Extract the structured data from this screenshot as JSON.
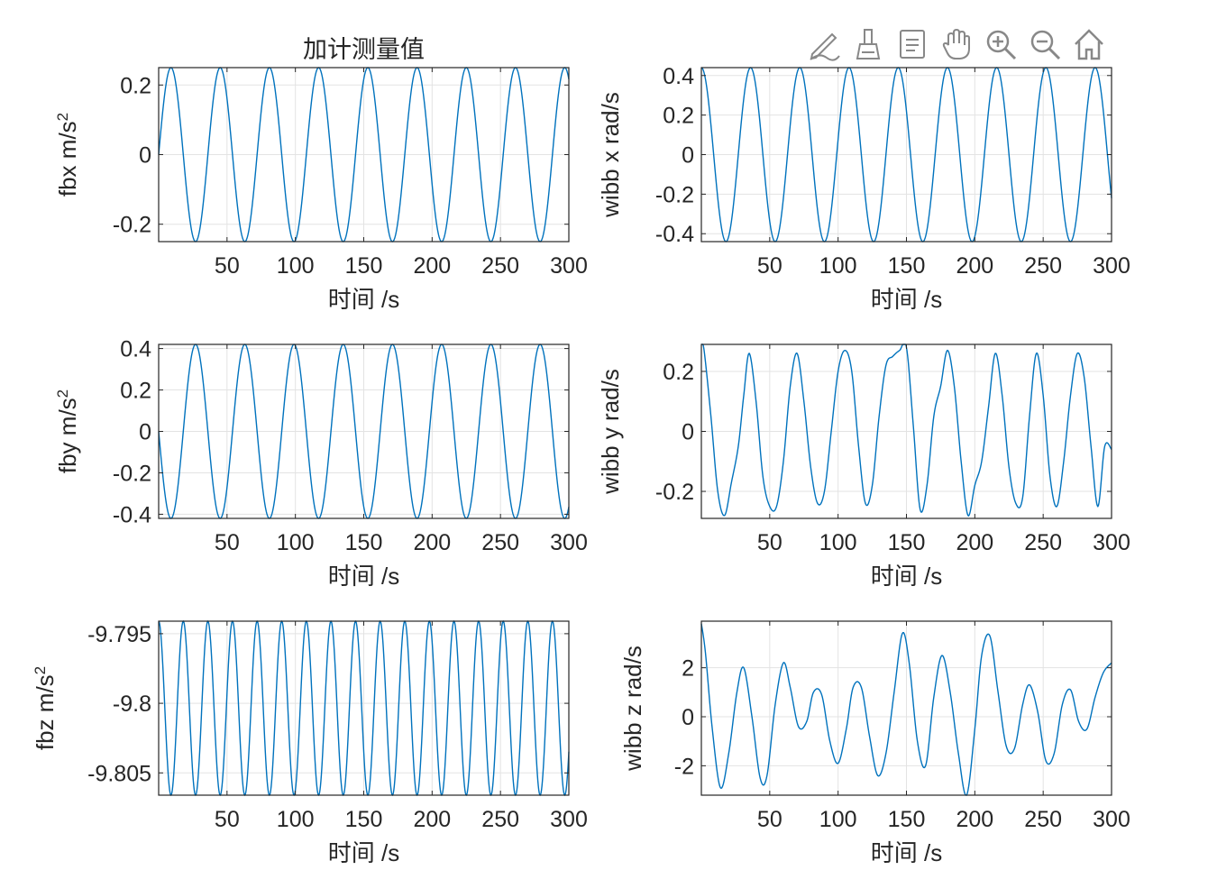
{
  "toolbar": {
    "items": [
      {
        "name": "edit-plot-icon"
      },
      {
        "name": "brush-icon"
      },
      {
        "name": "data-tips-icon"
      },
      {
        "name": "pan-hand-icon"
      },
      {
        "name": "zoom-in-icon"
      },
      {
        "name": "zoom-out-icon"
      },
      {
        "name": "home-icon"
      }
    ]
  },
  "colors": {
    "line": "#0072BD",
    "grid": "#e3e3e3",
    "axis": "#262626",
    "text": "#262626"
  },
  "chart_data": [
    {
      "type": "line",
      "title": "加计测量值",
      "xlabel": "时间 /s",
      "ylabel": "fbx m/s",
      "ylabel_sup": "2",
      "xlim": [
        0,
        300
      ],
      "ylim": [
        -0.25,
        0.25
      ],
      "xticks": [
        50,
        100,
        150,
        200,
        250,
        300
      ],
      "yticks": [
        -0.2,
        0,
        0.2
      ],
      "ytick_labels": [
        "-0.2",
        "0",
        "0.2"
      ],
      "grid": true,
      "series": [
        {
          "x": [
            0,
            300
          ],
          "y": [
            -0.25,
            0.25
          ],
          "form": "sine",
          "amplitude": 0.25,
          "period": 36,
          "phase_deg": 0,
          "offset": 0
        }
      ]
    },
    {
      "type": "line",
      "title": "",
      "xlabel": "时间 /s",
      "ylabel": "wibb x rad/s",
      "xlim": [
        0,
        300
      ],
      "ylim": [
        -0.44,
        0.44
      ],
      "xticks": [
        50,
        100,
        150,
        200,
        250,
        300
      ],
      "yticks": [
        -0.4,
        -0.2,
        0,
        0.2,
        0.4
      ],
      "ytick_labels": [
        "-0.4",
        "-0.2",
        "0",
        "0.2",
        "0.4"
      ],
      "grid": true,
      "series": [
        {
          "x": [
            0,
            300
          ],
          "y": [
            -0.44,
            0.44
          ],
          "form": "sine",
          "amplitude": 0.44,
          "period": 36,
          "phase_deg": 90,
          "offset": 0
        }
      ]
    },
    {
      "type": "line",
      "title": "",
      "xlabel": "时间 /s",
      "ylabel": "fby m/s",
      "ylabel_sup": "2",
      "xlim": [
        0,
        300
      ],
      "ylim": [
        -0.42,
        0.42
      ],
      "xticks": [
        50,
        100,
        150,
        200,
        250,
        300
      ],
      "yticks": [
        -0.4,
        -0.2,
        0,
        0.2,
        0.4
      ],
      "ytick_labels": [
        "-0.4",
        "-0.2",
        "0",
        "0.2",
        "0.4"
      ],
      "grid": true,
      "series": [
        {
          "x": [
            0,
            300
          ],
          "y": [
            -0.42,
            0.42
          ],
          "form": "sine",
          "amplitude": 0.42,
          "period": 36,
          "phase_deg": 180,
          "offset": 0
        }
      ]
    },
    {
      "type": "line",
      "title": "",
      "xlabel": "时间 /s",
      "ylabel": "wibb y rad/s",
      "xlim": [
        0,
        300
      ],
      "ylim": [
        -0.29,
        0.29
      ],
      "xticks": [
        50,
        100,
        150,
        200,
        250,
        300
      ],
      "yticks": [
        -0.2,
        0,
        0.2
      ],
      "ytick_labels": [
        "-0.2",
        "0",
        "0.2"
      ],
      "grid": true,
      "series": [
        {
          "x": [
            0,
            2,
            7,
            12,
            17,
            22,
            27,
            31,
            35,
            40,
            45,
            50,
            55,
            60,
            65,
            70,
            75,
            80,
            85,
            90,
            95,
            100,
            105,
            110,
            115,
            120,
            125,
            130,
            135,
            140,
            145,
            150,
            155,
            160,
            165,
            170,
            175,
            180,
            185,
            190,
            195,
            200,
            205,
            210,
            215,
            220,
            225,
            230,
            235,
            240,
            245,
            250,
            255,
            260,
            265,
            270,
            275,
            280,
            285,
            290,
            295,
            300
          ],
          "y": [
            0.29,
            0.27,
            0.05,
            -0.2,
            -0.28,
            -0.17,
            -0.05,
            0.12,
            0.26,
            0.1,
            -0.15,
            -0.25,
            -0.25,
            -0.1,
            0.15,
            0.26,
            0.1,
            -0.12,
            -0.24,
            -0.2,
            0.0,
            0.2,
            0.27,
            0.2,
            -0.05,
            -0.24,
            -0.18,
            0.05,
            0.22,
            0.25,
            0.27,
            0.28,
            0.02,
            -0.26,
            -0.18,
            0.05,
            0.15,
            0.27,
            0.15,
            -0.1,
            -0.28,
            -0.18,
            -0.1,
            0.08,
            0.26,
            0.12,
            -0.12,
            -0.24,
            -0.22,
            0.05,
            0.26,
            0.12,
            -0.15,
            -0.25,
            -0.1,
            0.12,
            0.26,
            0.18,
            -0.05,
            -0.25,
            -0.05,
            -0.06
          ]
        }
      ]
    },
    {
      "type": "line",
      "title": "",
      "xlabel": "时间 /s",
      "ylabel": "fbz m/s",
      "ylabel_sup": "2",
      "xlim": [
        0,
        300
      ],
      "ylim": [
        -9.8066,
        -9.7941
      ],
      "xticks": [
        50,
        100,
        150,
        200,
        250,
        300
      ],
      "yticks": [
        -9.805,
        -9.8,
        -9.795
      ],
      "ytick_labels": [
        "-9.805",
        "-9.8",
        "-9.795"
      ],
      "grid": true,
      "series": [
        {
          "x": [
            0,
            300
          ],
          "y": [
            -9.8066,
            -9.7941
          ],
          "form": "sine",
          "amplitude": 0.00625,
          "period": 18,
          "phase_deg": 90,
          "offset": -9.80035
        }
      ]
    },
    {
      "type": "line",
      "title": "",
      "xlabel": "时间 /s",
      "ylabel": "wibb z rad/s",
      "xlim": [
        0,
        300
      ],
      "ylim": [
        -3.2,
        3.9
      ],
      "xticks": [
        50,
        100,
        150,
        200,
        250,
        300
      ],
      "yticks": [
        -2,
        0,
        2
      ],
      "ytick_labels": [
        "-2",
        "0",
        "2"
      ],
      "grid": true,
      "series": [
        {
          "x": [
            0,
            3,
            8,
            14,
            20,
            26,
            31,
            37,
            43,
            48,
            54,
            60,
            65,
            71,
            77,
            82,
            88,
            94,
            100,
            106,
            111,
            117,
            123,
            129,
            135,
            141,
            147,
            152,
            158,
            164,
            170,
            176,
            182,
            188,
            194,
            200,
            205,
            211,
            217,
            223,
            229,
            235,
            240,
            246,
            252,
            258,
            264,
            270,
            276,
            282,
            288,
            294,
            300
          ],
          "y": [
            3.8,
            2.6,
            -0.5,
            -2.9,
            -1.5,
            1.0,
            2.0,
            0.0,
            -2.5,
            -2.4,
            0.5,
            2.2,
            1.2,
            -0.4,
            -0.2,
            1.0,
            0.9,
            -1.0,
            -1.9,
            -0.5,
            1.2,
            1.2,
            -0.8,
            -2.4,
            -1.5,
            1.0,
            3.4,
            2.2,
            -1.0,
            -2.0,
            0.8,
            2.5,
            1.0,
            -1.5,
            -3.2,
            -0.5,
            2.5,
            3.3,
            1.0,
            -1.2,
            -1.3,
            0.5,
            1.3,
            0.2,
            -1.8,
            -1.5,
            0.5,
            1.1,
            -0.2,
            -0.5,
            0.8,
            1.8,
            2.2
          ]
        }
      ]
    }
  ]
}
